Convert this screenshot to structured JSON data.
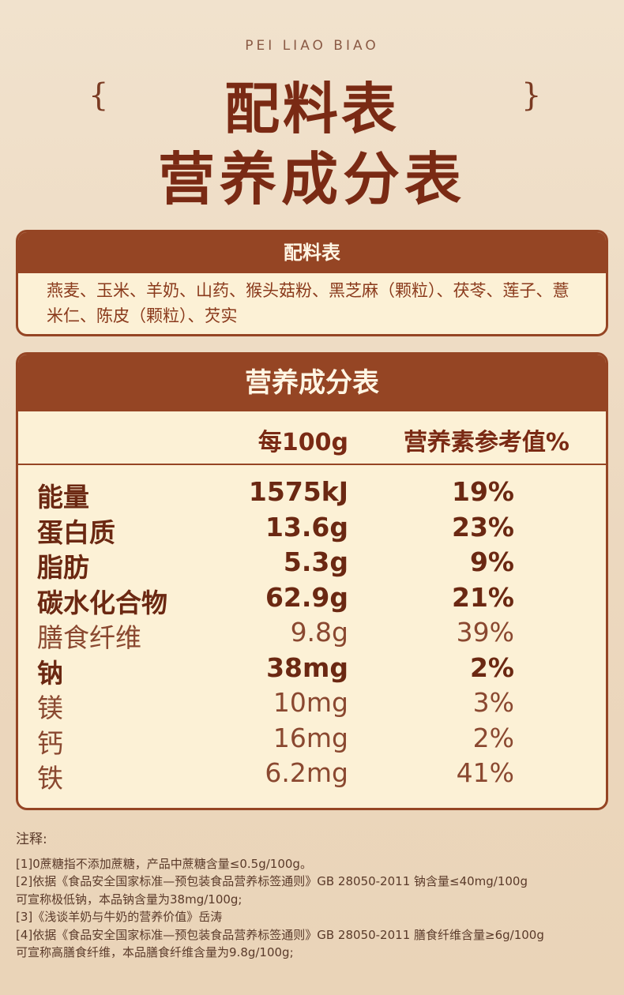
{
  "header": {
    "pinyin": "PEI LIAO BIAO",
    "title1": "配料表",
    "title2": "营养成分表",
    "brace_left": "{",
    "brace_right": "}"
  },
  "ingredients": {
    "title": "配料表",
    "text": "燕麦、玉米、羊奶、山药、猴头菇粉、黑芝麻（颗粒）、茯苓、莲子、薏米仁、陈皮（颗粒）、芡实"
  },
  "nutrition": {
    "title": "营养成分表",
    "col_amount": "每100g",
    "col_nrv": "营养素参考值%",
    "rows": [
      {
        "name": "能量",
        "amount": "1575kJ",
        "nrv": "19%",
        "bold": true
      },
      {
        "name": "蛋白质",
        "amount": "13.6g",
        "nrv": "23%",
        "bold": true
      },
      {
        "name": "脂肪",
        "amount": "5.3g",
        "nrv": "9%",
        "bold": true
      },
      {
        "name": "碳水化合物",
        "amount": "62.9g",
        "nrv": "21%",
        "bold": true
      },
      {
        "name": "膳食纤维",
        "amount": "9.8g",
        "nrv": "39%",
        "bold": false
      },
      {
        "name": "钠",
        "amount": "38mg",
        "nrv": "2%",
        "bold": true
      },
      {
        "name": "镁",
        "amount": "10mg",
        "nrv": "3%",
        "bold": false
      },
      {
        "name": "钙",
        "amount": "16mg",
        "nrv": "2%",
        "bold": false
      },
      {
        "name": "铁",
        "amount": "6.2mg",
        "nrv": "41%",
        "bold": false
      }
    ]
  },
  "notes": {
    "title": "注释:",
    "lines": [
      "[1]0蔗糖指不添加蔗糖，产品中蔗糖含量≤0.5g/100g。",
      "[2]依据《食品安全国家标准—预包装食品营养标签通则》GB 28050-2011 钠含量≤40mg/100g",
      "可宣称极低钠，本品钠含量为38mg/100g;",
      "[3]《浅谈羊奶与牛奶的营养价值》岳涛",
      "[4]依据《食品安全国家标准—预包装食品营养标签通则》GB 28050-2011 膳食纤维含量≥6g/100g",
      "可宣称高膳食纤维，本品膳食纤维含量为9.8g/100g;"
    ]
  },
  "colors": {
    "brand_brown": "#954524",
    "cream": "#fcf1d6",
    "title": "#7a2a14"
  }
}
